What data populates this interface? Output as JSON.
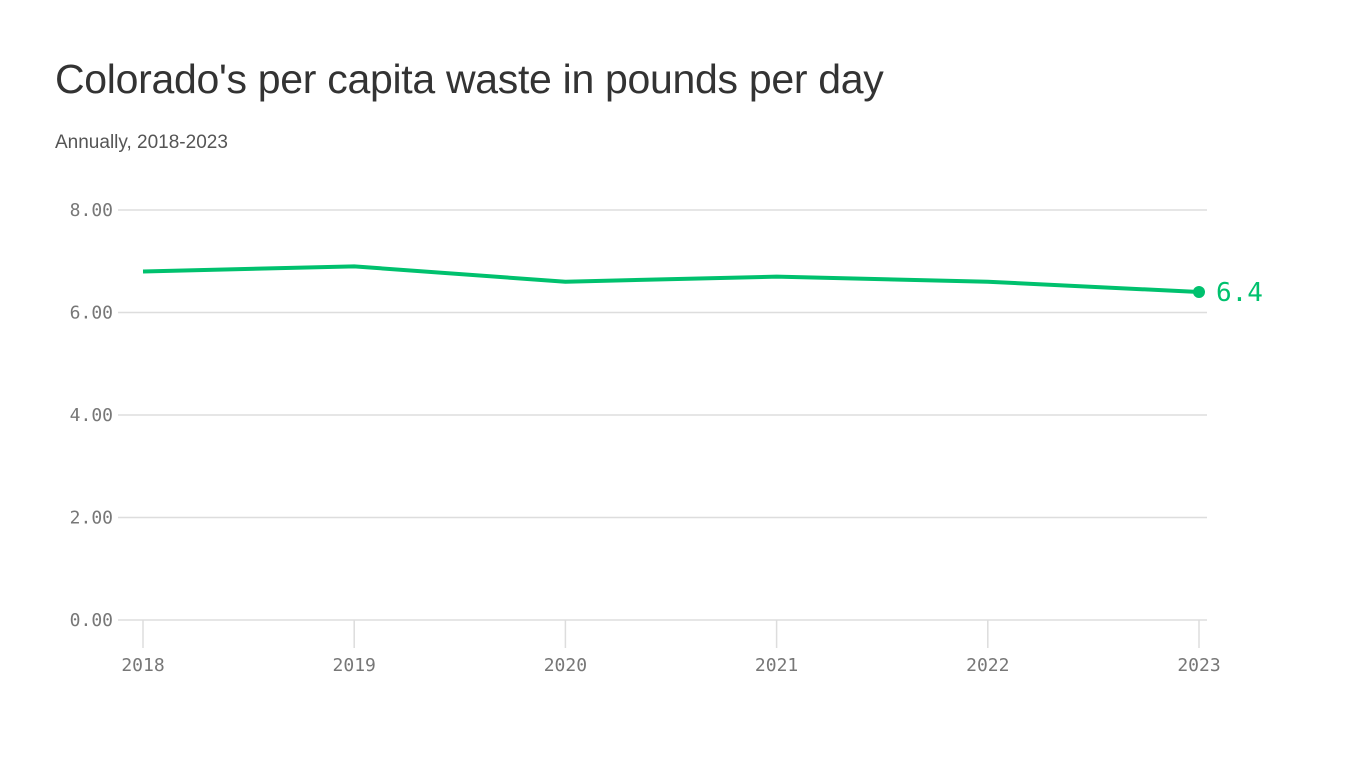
{
  "chart_data": {
    "type": "line",
    "title": "Colorado's per capita waste in pounds per day",
    "subtitle": "Annually, 2018-2023",
    "xlabel": "",
    "ylabel": "",
    "categories": [
      "2018",
      "2019",
      "2020",
      "2021",
      "2022",
      "2023"
    ],
    "values": [
      6.8,
      6.9,
      6.6,
      6.7,
      6.6,
      6.4
    ],
    "end_label": "6.4",
    "ylim": [
      0,
      8
    ],
    "y_ticks": [
      "0.00",
      "2.00",
      "4.00",
      "6.00",
      "8.00"
    ],
    "grid": true,
    "line_color": "#00c16e"
  }
}
